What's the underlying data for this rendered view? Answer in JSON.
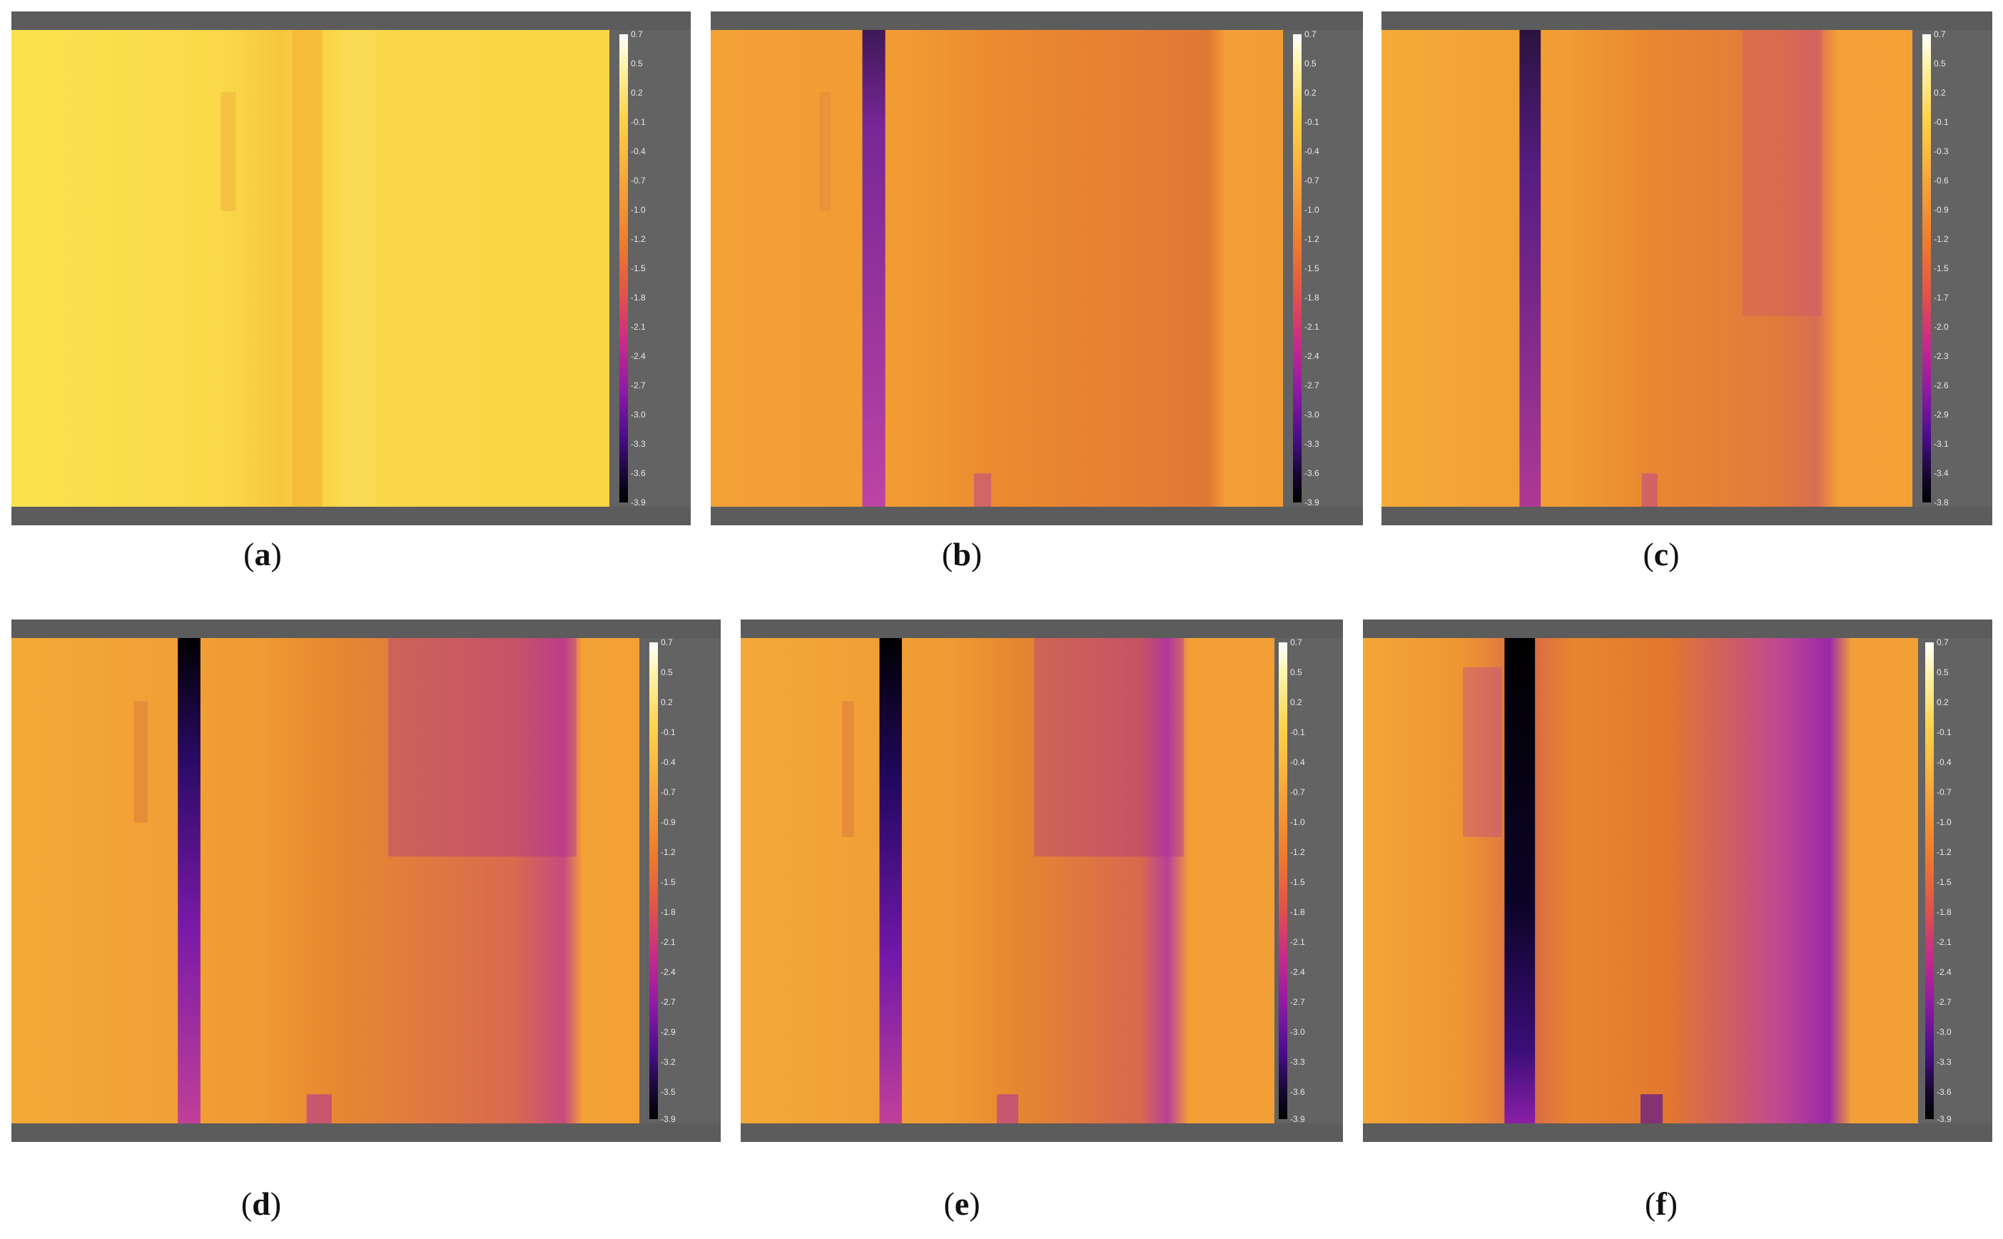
{
  "panels": [
    {
      "id": "a",
      "label": "a",
      "ticks": [
        "0.7",
        "0.5",
        "0.2",
        "-0.1",
        "-0.4",
        "-0.7",
        "-1.0",
        "-1.2",
        "-1.5",
        "-1.8",
        "-2.1",
        "-2.4",
        "-2.7",
        "-3.0",
        "-3.3",
        "-3.6",
        "-3.9"
      ]
    },
    {
      "id": "b",
      "label": "b",
      "ticks": [
        "0.7",
        "0.5",
        "0.2",
        "-0.1",
        "-0.4",
        "-0.7",
        "-1.0",
        "-1.2",
        "-1.5",
        "-1.8",
        "-2.1",
        "-2.4",
        "-2.7",
        "-3.0",
        "-3.3",
        "-3.6",
        "-3.9"
      ]
    },
    {
      "id": "c",
      "label": "c",
      "ticks": [
        "0.7",
        "0.5",
        "0.2",
        "-0.1",
        "-0.3",
        "-0.6",
        "-0.9",
        "-1.2",
        "-1.5",
        "-1.7",
        "-2.0",
        "-2.3",
        "-2.6",
        "-2.9",
        "-3.1",
        "-3.4",
        "-3.8"
      ]
    },
    {
      "id": "d",
      "label": "d",
      "ticks": [
        "0.7",
        "0.5",
        "0.2",
        "-0.1",
        "-0.4",
        "-0.7",
        "-0.9",
        "-1.2",
        "-1.5",
        "-1.8",
        "-2.1",
        "-2.4",
        "-2.7",
        "-2.9",
        "-3.2",
        "-3.5",
        "-3.9"
      ]
    },
    {
      "id": "e",
      "label": "e",
      "ticks": [
        "0.7",
        "0.5",
        "0.2",
        "-0.1",
        "-0.4",
        "-0.7",
        "-1.0",
        "-1.2",
        "-1.5",
        "-1.8",
        "-2.1",
        "-2.4",
        "-2.7",
        "-3.0",
        "-3.3",
        "-3.6",
        "-3.9"
      ]
    },
    {
      "id": "f",
      "label": "f",
      "ticks": [
        "0.7",
        "0.5",
        "0.2",
        "-0.1",
        "-0.4",
        "-0.7",
        "-1.0",
        "-1.2",
        "-1.5",
        "-1.8",
        "-2.1",
        "-2.4",
        "-2.7",
        "-3.0",
        "-3.3",
        "-3.6",
        "-3.9"
      ]
    }
  ],
  "colors": {
    "frame": "#636363",
    "colormap": [
      "#ffffff",
      "#ffd24a",
      "#ee7a2e",
      "#c82a8a",
      "#4a0e8a",
      "#000000"
    ]
  }
}
